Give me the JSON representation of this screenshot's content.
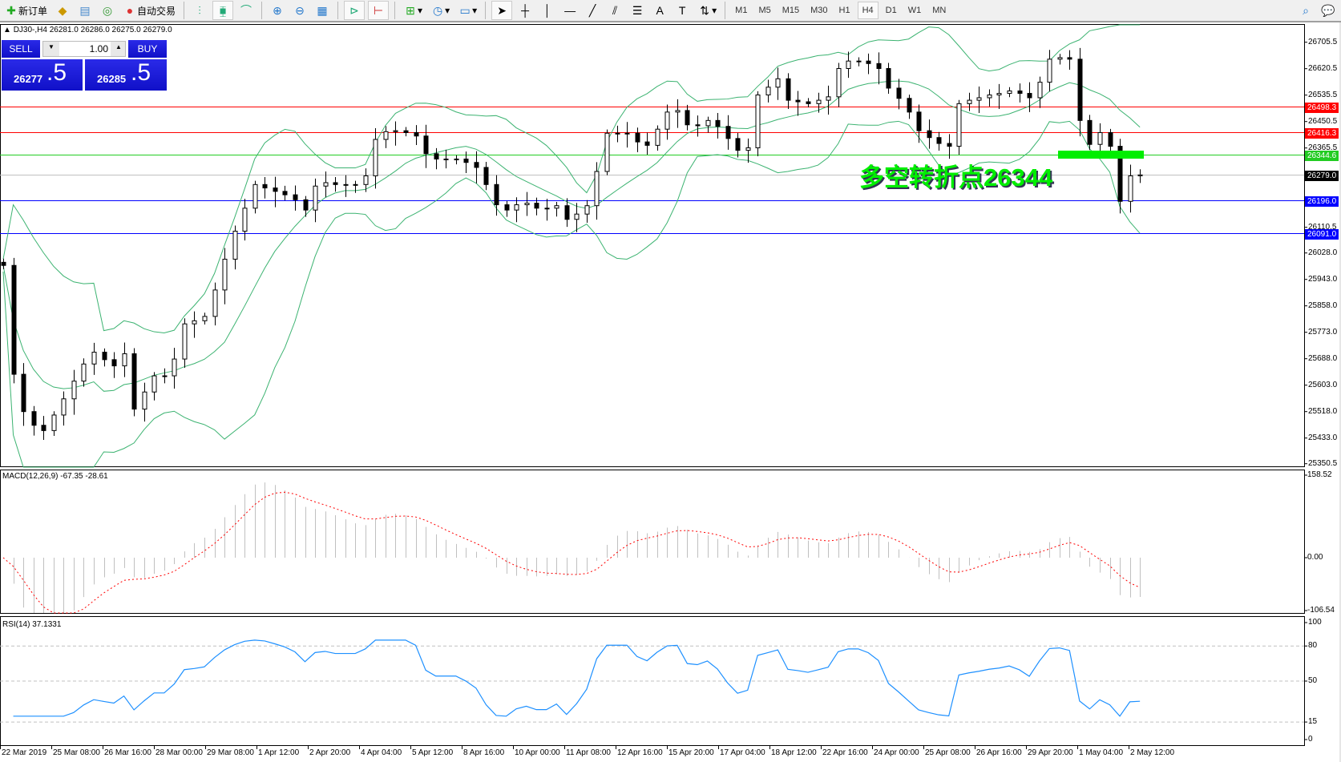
{
  "toolbar": {
    "new_order": "新订单",
    "auto_trading": "自动交易",
    "timeframes": [
      "M1",
      "M5",
      "M15",
      "M30",
      "H1",
      "H4",
      "D1",
      "W1",
      "MN"
    ],
    "active_timeframe": "H4"
  },
  "chart": {
    "symbol_info": "DJ30-,H4  26281.0 26286.0 26275.0 26279.0",
    "trade_panel": {
      "sell_label": "SELL",
      "buy_label": "BUY",
      "lot": "1.00",
      "sell_price_main": "26277",
      "sell_price_big": ".5",
      "buy_price_main": "26285",
      "buy_price_big": ".5"
    },
    "price_ticks": [
      "26705.5",
      "26620.5",
      "26535.5",
      "26450.5",
      "26365.5",
      "26110.5",
      "26028.0",
      "25943.0",
      "25858.0",
      "25773.0",
      "25688.0",
      "25603.0",
      "25518.0",
      "25433.0",
      "25350.5"
    ],
    "hlines": [
      {
        "price": "26498.3",
        "color": "#ff0000"
      },
      {
        "price": "26416.3",
        "color": "#ff0000"
      },
      {
        "price": "26344.6",
        "color": "#22cc22"
      },
      {
        "price": "26279.0",
        "color": "#000000",
        "line": "#c0c0c0"
      },
      {
        "price": "26196.0",
        "color": "#0000ff"
      },
      {
        "price": "26091.0",
        "color": "#0000ff"
      }
    ],
    "annotation": "多空转折点26344",
    "annotation_color": "#00ee00",
    "closes": [
      25988,
      25638,
      25518,
      25474,
      25457,
      25507,
      25559,
      25616,
      25671,
      25709,
      25685,
      25665,
      25704,
      25526,
      25581,
      25633,
      25633,
      25687,
      25800,
      25810,
      25824,
      25909,
      26008,
      26098,
      26172,
      26248,
      26237,
      26226,
      26215,
      26199,
      26166,
      26243,
      26254,
      26248,
      26248,
      26248,
      26276,
      26393,
      26418,
      26421,
      26415,
      26404,
      26347,
      26330,
      26330,
      26330,
      26319,
      26303,
      26248,
      26183,
      26166,
      26183,
      26188,
      26172,
      26172,
      26180,
      26136,
      26153,
      26180,
      26290,
      26413,
      26413,
      26413,
      26385,
      26374,
      26426,
      26481,
      26486,
      26440,
      26437,
      26454,
      26435,
      26396,
      26358,
      26366,
      26536,
      26561,
      26588,
      26519,
      26514,
      26508,
      26519,
      26530,
      26621,
      26645,
      26645,
      26637,
      26621,
      26558,
      26525,
      26481,
      26421,
      26399,
      26380,
      26371,
      26508,
      26519,
      26527,
      26536,
      26541,
      26549,
      26541,
      26527,
      26577,
      26651,
      26656,
      26651,
      26454,
      26377,
      26415,
      26371,
      26194,
      26276,
      26279
    ]
  },
  "macd": {
    "label": "MACD(12,26,9) -67.35 -28.61",
    "ticks": [
      "158.52",
      "0.00",
      "-106.54"
    ]
  },
  "rsi": {
    "label": "RSI(14) 37.1331",
    "ticks": [
      "100",
      "80",
      "50",
      "15",
      "0"
    ]
  },
  "time_labels": [
    "22 Mar 2019",
    "25 Mar 08:00",
    "26 Mar 16:00",
    "28 Mar 00:00",
    "29 Mar 08:00",
    "1 Apr 12:00",
    "2 Apr 20:00",
    "4 Apr 04:00",
    "5 Apr 12:00",
    "8 Apr 16:00",
    "10 Apr 00:00",
    "11 Apr 08:00",
    "12 Apr 16:00",
    "15 Apr 20:00",
    "17 Apr 04:00",
    "18 Apr 12:00",
    "22 Apr 16:00",
    "24 Apr 00:00",
    "25 Apr 08:00",
    "26 Apr 16:00",
    "29 Apr 20:00",
    "1 May 04:00",
    "2 May 12:00"
  ]
}
